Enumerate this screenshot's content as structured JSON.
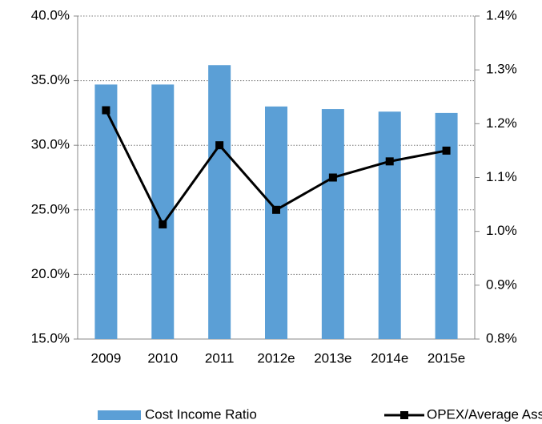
{
  "chart_data": {
    "type": "bar-line",
    "categories": [
      "2009",
      "2010",
      "2011",
      "2012e",
      "2013e",
      "2014e",
      "2015e"
    ],
    "series": [
      {
        "name": "Cost Income Ratio",
        "type": "bar",
        "color": "#5b9fd6",
        "values": [
          34.7,
          34.7,
          36.2,
          33.0,
          32.8,
          32.6,
          32.5
        ]
      },
      {
        "name": "OPEX/Average Assets",
        "type": "line",
        "axis": "y2",
        "color": "#000000",
        "values": [
          1.225,
          1.013,
          1.16,
          1.04,
          1.1,
          1.13,
          1.15
        ]
      }
    ],
    "ylim": [
      15,
      40
    ],
    "yticks": [
      {
        "value": 15,
        "label": "15.0%"
      },
      {
        "value": 20,
        "label": "20.0%"
      },
      {
        "value": 25,
        "label": "25.0%"
      },
      {
        "value": 30,
        "label": "30.0%"
      },
      {
        "value": 35,
        "label": "35.0%"
      },
      {
        "value": 40,
        "label": "40.0%"
      }
    ],
    "y2lim": [
      0.8,
      1.4
    ],
    "y2ticks": [
      {
        "value": 0.8,
        "label": "0.8%"
      },
      {
        "value": 0.9,
        "label": "0.9%"
      },
      {
        "value": 1.0,
        "label": "1.0%"
      },
      {
        "value": 1.1,
        "label": "1.1%"
      },
      {
        "value": 1.2,
        "label": "1.2%"
      },
      {
        "value": 1.3,
        "label": "1.3%"
      },
      {
        "value": 1.4,
        "label": "1.4%"
      }
    ],
    "grid": true,
    "legend": "bottom"
  }
}
